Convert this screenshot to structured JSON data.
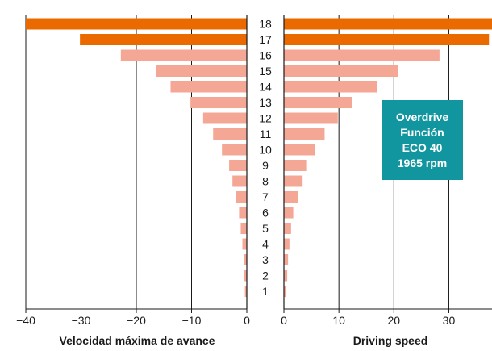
{
  "chart_data": {
    "type": "bar",
    "categories": [
      "18",
      "17",
      "16",
      "15",
      "14",
      "13",
      "12",
      "11",
      "10",
      "9",
      "8",
      "7",
      "6",
      "5",
      "4",
      "3",
      "2",
      "1"
    ],
    "colors": {
      "highlight": "#ea6a00",
      "normal": "#f5a796",
      "axis": "#1a1a1a",
      "grid": "#1a1a1a"
    },
    "highlighted_categories": [
      "18",
      "17"
    ],
    "left_panel": {
      "xlabel": "Velocidad máxima de avance",
      "xlim": [
        -40,
        0
      ],
      "ticks": [
        -40,
        -30,
        -20,
        -10,
        0
      ],
      "tick_labels": [
        "−40",
        "−30",
        "−20",
        "−10",
        "0"
      ],
      "values": [
        -40,
        -30.2,
        -22.8,
        -16.5,
        -13.8,
        -10.2,
        -7.9,
        -6.1,
        -4.5,
        -3.2,
        -2.6,
        -2.0,
        -1.4,
        -1.1,
        -0.8,
        -0.55,
        -0.45,
        -0.35
      ]
    },
    "right_panel": {
      "xlabel": "Driving speed",
      "xlim": [
        0,
        38
      ],
      "ticks": [
        0,
        10,
        20,
        30
      ],
      "tick_labels": [
        "0",
        "10",
        "20",
        "30"
      ],
      "values": [
        38,
        37.3,
        28.3,
        20.7,
        17.0,
        12.4,
        9.8,
        7.4,
        5.6,
        4.2,
        3.4,
        2.5,
        1.7,
        1.3,
        1.0,
        0.75,
        0.6,
        0.45
      ]
    },
    "annotation": [
      "Overdrive",
      "Función",
      "ECO 40",
      "1965 rpm"
    ]
  }
}
